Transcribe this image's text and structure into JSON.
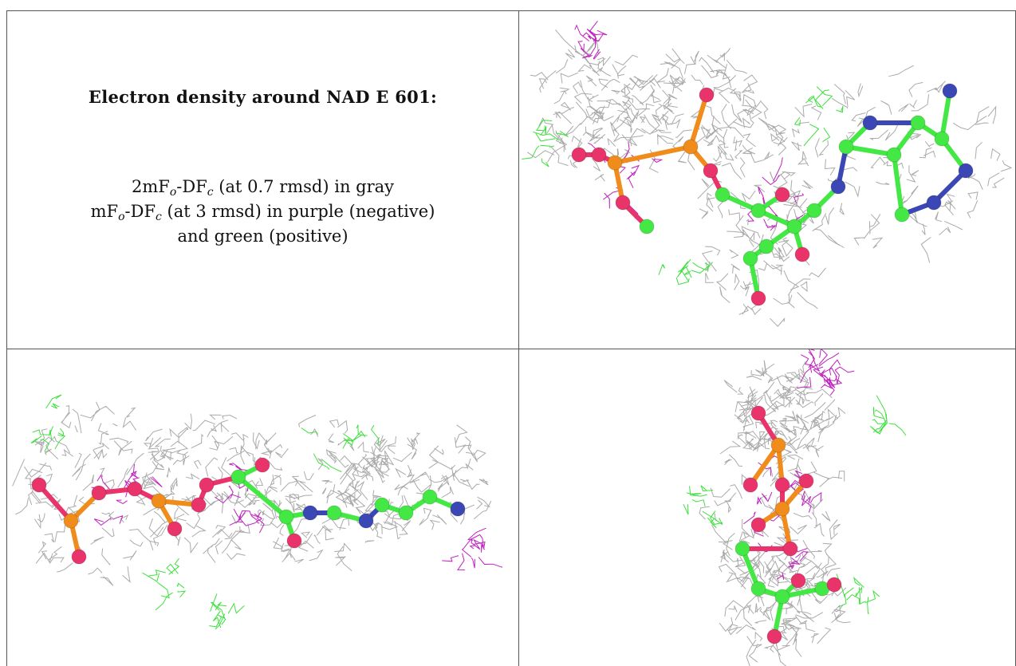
{
  "caption": {
    "title": "Electron density around NAD E 601:",
    "line1": [
      "2mF",
      "o",
      "-DF",
      "c",
      " (at 0.7 rmsd) in gray"
    ],
    "line2": [
      "mF",
      "o",
      "-DF",
      "c",
      " (at 3 rmsd) in purple (negative)"
    ],
    "line3": "and green (positive)"
  }
}
